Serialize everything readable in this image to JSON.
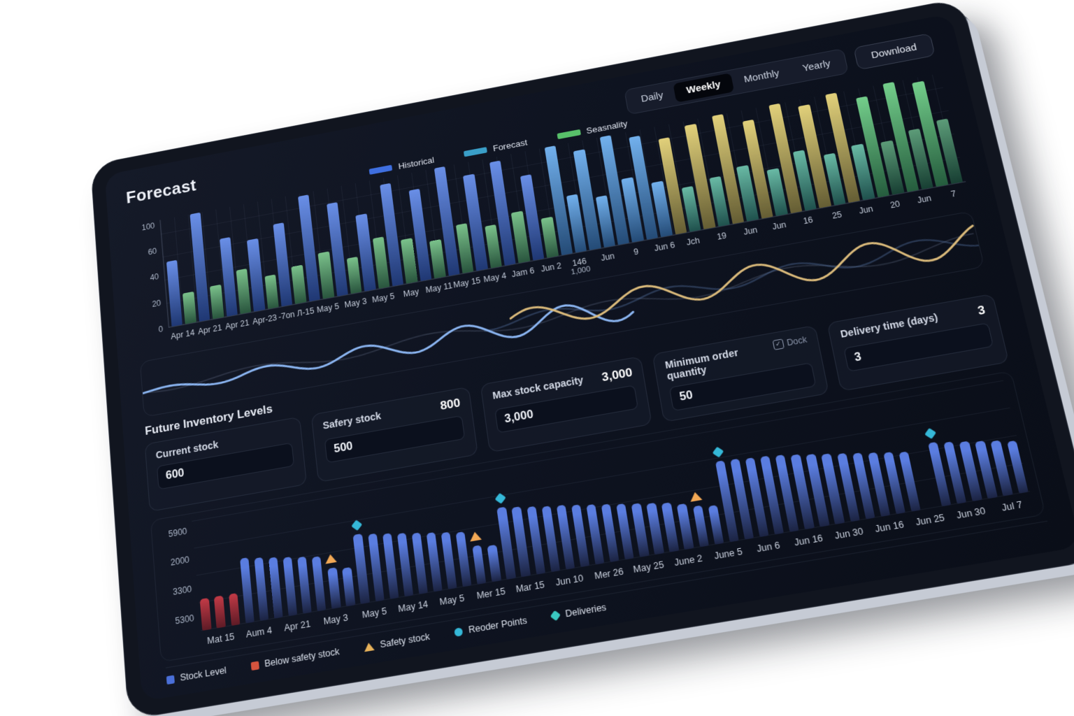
{
  "header": {
    "title": "Forecast",
    "view_tabs": [
      {
        "label": "Daily",
        "active": false
      },
      {
        "label": "Weekly",
        "active": true
      },
      {
        "label": "Monthly",
        "active": false
      },
      {
        "label": "Yearly",
        "active": false
      }
    ],
    "download_label": "Download"
  },
  "forecast_chart": {
    "legend": [
      {
        "label": "Historical",
        "color": "#3f6fe0"
      },
      {
        "label": "Forecast",
        "color": "#3a9fc8"
      },
      {
        "label": "Seasnality",
        "color": "#58c06a"
      }
    ],
    "y_ticks": [
      "100",
      "60",
      "40",
      "20",
      "0"
    ],
    "x_ticks": [
      "Apr 14",
      "Apr 21",
      "Apr 21",
      "Apr-23",
      "-7on Л-15",
      "May 5",
      "May 3",
      "May 5",
      "May",
      "May 11",
      "May 15",
      "May 4",
      "Jam 6",
      "Jun 2",
      "146|1,000",
      "Jun",
      "9",
      "Jun 6",
      "Jch",
      "19",
      "Jun",
      "Jun",
      "16",
      "25",
      "Jun",
      "20",
      "Jun",
      "7"
    ]
  },
  "inputs": {
    "section_title": "Future Inventory Levels",
    "cards": [
      {
        "label": "Current stock",
        "value": "600",
        "corner": "",
        "corner_type": "none"
      },
      {
        "label": "Safery stock",
        "value": "500",
        "corner": "800",
        "corner_type": "value"
      },
      {
        "label": "Max stock capacity",
        "value": "3,000",
        "corner": "3,000",
        "corner_type": "value"
      },
      {
        "label": "Minimum order quantity",
        "value": "50",
        "corner": "Dock",
        "corner_type": "checkbox"
      },
      {
        "label": "Delivery time (days)",
        "value": "3",
        "corner": "3",
        "corner_type": "value"
      }
    ]
  },
  "inventory_chart": {
    "y_ticks": [
      "5900",
      "2000",
      "3300",
      "5300"
    ],
    "x_ticks": [
      "Mat 15",
      "Aum 4",
      "Apr 21",
      "May 3",
      "May 5",
      "May 14",
      "May 5",
      "Mer 15",
      "Mar 15",
      "Jun 10",
      "Mer 26",
      "May 25",
      "June 2",
      "June 5",
      "Jun 6",
      "Jun 16",
      "Jun 30",
      "Jun 16",
      "Jun 25",
      "Jun 30",
      "Jul 7"
    ],
    "legend": [
      {
        "label": "Stock Level",
        "color": "#4a6fd8",
        "shape": "square"
      },
      {
        "label": "Below safety stock",
        "color": "#d4543e",
        "shape": "square"
      },
      {
        "label": "Safety stock",
        "color": "#e8b25a",
        "shape": "triangle"
      },
      {
        "label": "Reoder Points",
        "color": "#35b8d8",
        "shape": "circle"
      },
      {
        "label": "Deliveries",
        "color": "#3ac8c0",
        "shape": "diamond"
      }
    ]
  },
  "chart_data": [
    {
      "type": "bar",
      "name": "forecast-history-chart",
      "title": "Forecast",
      "ylim": [
        0,
        100
      ],
      "y_ticks": [
        "100",
        "60",
        "40",
        "20",
        "0"
      ],
      "palette": {
        "hist": "#3f6fe0",
        "seas": "#55b06a",
        "fore": "#4a9ae8",
        "yellow": "#d9c355",
        "teal": "#3fa78c",
        "green": "#4cc06a",
        "dgreen": "#2e7f52"
      },
      "bars": [
        [
          60,
          "hist"
        ],
        [
          28,
          "seas"
        ],
        [
          100,
          "hist"
        ],
        [
          30,
          "seas"
        ],
        [
          72,
          "hist"
        ],
        [
          40,
          "seas"
        ],
        [
          66,
          "hist"
        ],
        [
          30,
          "seas"
        ],
        [
          76,
          "hist"
        ],
        [
          34,
          "seas"
        ],
        [
          98,
          "hist"
        ],
        [
          42,
          "seas"
        ],
        [
          86,
          "hist"
        ],
        [
          32,
          "seas"
        ],
        [
          70,
          "hist"
        ],
        [
          46,
          "seas"
        ],
        [
          94,
          "hist"
        ],
        [
          40,
          "seas"
        ],
        [
          84,
          "hist"
        ],
        [
          34,
          "seas"
        ],
        [
          100,
          "hist"
        ],
        [
          44,
          "seas"
        ],
        [
          88,
          "hist"
        ],
        [
          38,
          "seas"
        ],
        [
          96,
          "hist"
        ],
        [
          46,
          "seas"
        ],
        [
          78,
          "hist"
        ],
        [
          36,
          "seas"
        ],
        [
          100,
          "fore"
        ],
        [
          52,
          "fore"
        ],
        [
          92,
          "fore"
        ],
        [
          46,
          "fore"
        ],
        [
          100,
          "fore"
        ],
        [
          58,
          "fore"
        ],
        [
          95,
          "fore"
        ],
        [
          50,
          "fore"
        ],
        [
          88,
          "yellow"
        ],
        [
          40,
          "teal"
        ],
        [
          96,
          "yellow"
        ],
        [
          44,
          "teal"
        ],
        [
          100,
          "yellow"
        ],
        [
          50,
          "teal"
        ],
        [
          90,
          "yellow"
        ],
        [
          42,
          "teal"
        ],
        [
          100,
          "yellow"
        ],
        [
          54,
          "teal"
        ],
        [
          94,
          "yellow"
        ],
        [
          46,
          "teal"
        ],
        [
          100,
          "yellow"
        ],
        [
          50,
          "teal"
        ],
        [
          92,
          "green"
        ],
        [
          48,
          "dgreen"
        ],
        [
          100,
          "green"
        ],
        [
          54,
          "dgreen"
        ],
        [
          96,
          "green"
        ],
        [
          58,
          "dgreen"
        ]
      ]
    },
    {
      "type": "line",
      "name": "seasonality-wave-strip",
      "series": [
        {
          "name": "forecast-wave",
          "color": "#8ab4f0",
          "extent": "left-half"
        },
        {
          "name": "seasonality-wave",
          "color": "#d9b97a",
          "extent": "right-half"
        },
        {
          "name": "background-wave",
          "color": "#5a6b8c",
          "extent": "full-width"
        }
      ]
    },
    {
      "type": "bar",
      "name": "future-inventory-chart",
      "y_ticks": [
        "5900",
        "2000",
        "3300",
        "5300"
      ],
      "palette": {
        "stock": "#5a7de0",
        "red": "#c23a46"
      },
      "marker_colors": {
        "triangle": "#f2a855",
        "diamond": "#35b8d8"
      },
      "bars": [
        [
          28,
          "red"
        ],
        [
          28,
          "red"
        ],
        [
          28,
          "red"
        ],
        [
          58,
          "stock"
        ],
        [
          56,
          "stock"
        ],
        [
          54,
          "stock"
        ],
        [
          52,
          "stock"
        ],
        [
          50,
          "stock"
        ],
        [
          48,
          "stock"
        ],
        [
          36,
          "stock",
          "triangle"
        ],
        [
          34,
          "stock"
        ],
        [
          62,
          "stock",
          "diamond"
        ],
        [
          60,
          "stock"
        ],
        [
          58,
          "stock"
        ],
        [
          56,
          "stock"
        ],
        [
          54,
          "stock"
        ],
        [
          52,
          "stock"
        ],
        [
          50,
          "stock"
        ],
        [
          48,
          "stock"
        ],
        [
          34,
          "stock",
          "triangle"
        ],
        [
          32,
          "stock"
        ],
        [
          64,
          "stock",
          "diamond"
        ],
        [
          62,
          "stock"
        ],
        [
          60,
          "stock"
        ],
        [
          58,
          "stock"
        ],
        [
          57,
          "stock"
        ],
        [
          55,
          "stock"
        ],
        [
          53,
          "stock"
        ],
        [
          51,
          "stock"
        ],
        [
          49,
          "stock"
        ],
        [
          47,
          "stock"
        ],
        [
          45,
          "stock"
        ],
        [
          43,
          "stock"
        ],
        [
          40,
          "stock"
        ],
        [
          36,
          "stock",
          "triangle"
        ],
        [
          34,
          "stock"
        ],
        [
          72,
          "stock",
          "diamond"
        ],
        [
          71,
          "stock"
        ],
        [
          70,
          "stock"
        ],
        [
          69,
          "stock"
        ],
        [
          68,
          "stock"
        ],
        [
          66,
          "stock"
        ],
        [
          64,
          "stock"
        ],
        [
          62,
          "stock"
        ],
        [
          60,
          "stock"
        ],
        [
          58,
          "stock"
        ],
        [
          56,
          "stock"
        ],
        [
          54,
          "stock"
        ],
        [
          52,
          "stock"
        ],
        [
          "gap"
        ],
        [
          56,
          "stock",
          "diamond"
        ],
        [
          54,
          "stock"
        ],
        [
          52,
          "stock"
        ],
        [
          50,
          "stock"
        ],
        [
          48,
          "stock"
        ],
        [
          46,
          "stock"
        ]
      ]
    }
  ]
}
